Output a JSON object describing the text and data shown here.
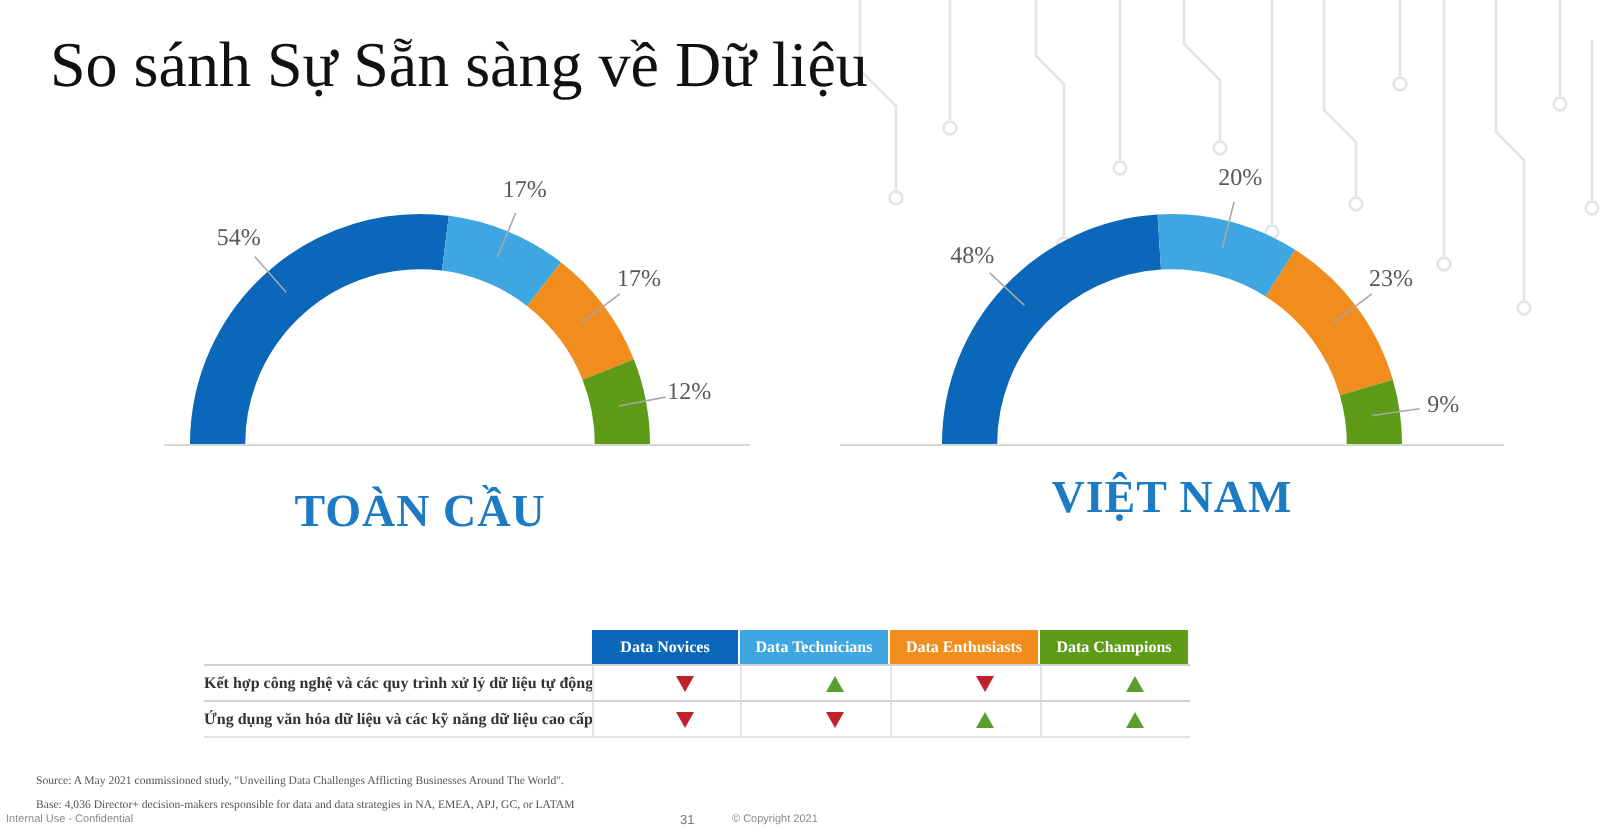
{
  "chart_data": [
    {
      "type": "donut",
      "title": "TOÀN CẦU",
      "categories": [
        null,
        null,
        null,
        null
      ],
      "values": [
        54,
        17,
        17,
        12
      ],
      "colors": [
        "#0b67b9",
        "#3ea6e1",
        "#f08d1c",
        "#5e9b18"
      ],
      "value_labels": [
        "54%",
        "17%",
        "17%",
        "12%"
      ]
    },
    {
      "type": "donut",
      "title": "VIỆT NAM",
      "categories": [
        null,
        null,
        null,
        null
      ],
      "values": [
        48,
        20,
        23,
        9
      ],
      "colors": [
        "#0b67b9",
        "#3ea6e1",
        "#f08d1c",
        "#5e9b18"
      ],
      "value_labels": [
        "48%",
        "20%",
        "23%",
        "9%"
      ]
    },
    {
      "type": "other",
      "title": "So sánh Sự Sẵn sàng về Dữ liệu",
      "annotations": [
        "Data Novices",
        "Data Technicians",
        "Data Enthusiasts",
        "Data Champions",
        "Kết hợp công nghệ và các quy trình xử lý dữ liệu tự động",
        "Ứng dụng văn hóa dữ liệu và các kỹ năng dữ liệu cao cấp",
        "Source: A May 2021 commissioned study, \"Unveiling Data Challenges Afflicting Businesses Around The World\".",
        "Base: 4,036 Director+ decision-makers responsible for data and data strategies in NA, EMEA, APJ, GC, or LATAM",
        "Internal Use - Confidential",
        "31",
        "© Copyright 2021"
      ]
    }
  ]
}
